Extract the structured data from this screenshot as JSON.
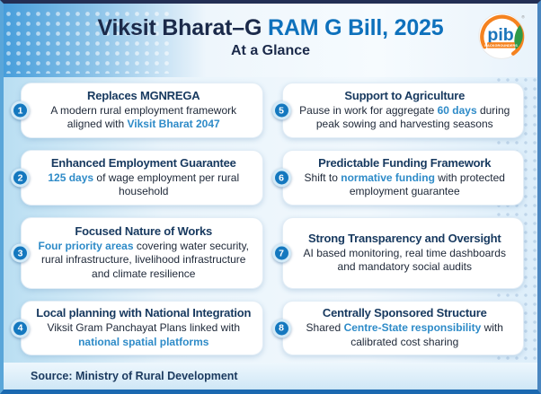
{
  "header": {
    "title_part1": "Viksit Bharat–G",
    "title_part2": " RAM G Bill, 2025",
    "subtitle": "At a Glance",
    "logo": {
      "text": "pib",
      "banner": "BACKGROUNDERS"
    }
  },
  "cards": [
    {
      "number": "1",
      "title": "Replaces MGNREGA",
      "body": [
        {
          "text": "A modern rural employment framework aligned with ",
          "highlight": false
        },
        {
          "text": "Viksit Bharat 2047",
          "highlight": true
        }
      ]
    },
    {
      "number": "2",
      "title": "Enhanced Employment Guarantee",
      "body": [
        {
          "text": "125 days",
          "highlight": true
        },
        {
          "text": " of wage employment per rural household",
          "highlight": false
        }
      ]
    },
    {
      "number": "3",
      "title": "Focused Nature of Works",
      "body": [
        {
          "text": "Four priority areas",
          "highlight": true
        },
        {
          "text": " covering water security, rural infrastructure, livelihood infrastructure and climate resilience",
          "highlight": false
        }
      ]
    },
    {
      "number": "4",
      "title": "Local planning with National Integration",
      "body": [
        {
          "text": "Viksit Gram Panchayat Plans linked with ",
          "highlight": false
        },
        {
          "text": "national spatial platforms",
          "highlight": true
        }
      ]
    },
    {
      "number": "5",
      "title": "Support to Agriculture",
      "body": [
        {
          "text": "Pause in work for aggregate ",
          "highlight": false
        },
        {
          "text": "60 days",
          "highlight": true
        },
        {
          "text": " during peak sowing and harvesting seasons",
          "highlight": false
        }
      ]
    },
    {
      "number": "6",
      "title": "Predictable Funding Framework",
      "body": [
        {
          "text": "Shift to ",
          "highlight": false
        },
        {
          "text": "normative funding",
          "highlight": true
        },
        {
          "text": " with protected employment guarantee",
          "highlight": false
        }
      ]
    },
    {
      "number": "7",
      "title": "Strong Transparency and Oversight",
      "body": [
        {
          "text": "AI based monitoring, real time dashboards and mandatory social audits",
          "highlight": false
        }
      ]
    },
    {
      "number": "8",
      "title": "Centrally Sponsored Structure",
      "body": [
        {
          "text": "Shared ",
          "highlight": false
        },
        {
          "text": "Centre-State responsibility",
          "highlight": true
        },
        {
          "text": " with calibrated cost sharing",
          "highlight": false
        }
      ]
    }
  ],
  "footer": {
    "source": "Source: Ministry of Rural Development"
  },
  "colors": {
    "title_navy": "#1b2a4a",
    "title_blue": "#0e71bc",
    "card_title_navy": "#17395f",
    "highlight_blue": "#2e8bc8",
    "badge_blue": "#1478bf",
    "logo_orange": "#f5821f",
    "logo_green": "#2e9a47"
  }
}
